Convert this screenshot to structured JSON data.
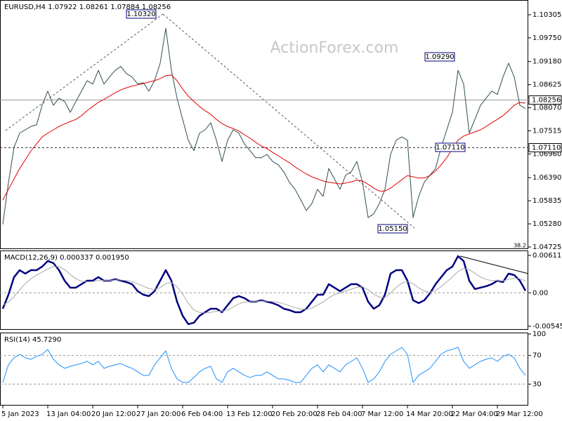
{
  "watermark": "ActionForex.com",
  "chart_data": [
    {
      "type": "line",
      "title": "EURUSD,H4 1.07922 1.08261 1.07884 1.08256",
      "ylim": [
        1.04674,
        1.10659
      ],
      "yticks": [
        1.10305,
        {
          "value": 1.0975,
          "label": "1.09750"
        },
        {
          "value": 1.0918,
          "label": "1.09180"
        },
        1.08625,
        {
          "value": 1.0807,
          "label": "1.08070"
        },
        1.07515,
        {
          "value": 1.0696,
          "label": "1.06960"
        },
        {
          "value": 1.0639,
          "label": "1.06390"
        },
        1.05835,
        {
          "value": 1.0528,
          "label": "1.05280"
        },
        1.04725
      ],
      "levels": [
        {
          "value": 1.08256,
          "label": "1.08256",
          "style": "solid"
        },
        {
          "value": 1.0711,
          "label": "1.07110",
          "style": "dashed"
        }
      ],
      "annotations": [
        "1.10320",
        "1.09290",
        "1.07110",
        "1.05150",
        "38.2"
      ],
      "series": [
        {
          "color": "#2f4f4f",
          "values": [
            1.0527,
            1.0627,
            1.0712,
            1.0746,
            1.0754,
            1.0762,
            1.0766,
            1.0813,
            1.0847,
            1.0813,
            1.083,
            1.0822,
            1.0796,
            1.0822,
            1.0847,
            1.0872,
            1.0864,
            1.0897,
            1.0864,
            1.0881,
            1.0897,
            1.0906,
            1.0889,
            1.0881,
            1.0864,
            1.0867,
            1.0847,
            1.0872,
            1.0914,
            1.0998,
            1.0897,
            1.083,
            1.0779,
            1.0729,
            1.0704,
            1.0746,
            1.0754,
            1.0771,
            1.0729,
            1.0678,
            1.0729,
            1.0754,
            1.0746,
            1.072,
            1.0704,
            1.0687,
            1.0687,
            1.0695,
            1.0678,
            1.067,
            1.0653,
            1.0628,
            1.0611,
            1.0586,
            1.056,
            1.0577,
            1.0611,
            1.0594,
            1.0661,
            1.0636,
            1.0611,
            1.0645,
            1.0653,
            1.0678,
            1.0628,
            1.0543,
            1.0552,
            1.0577,
            1.0611,
            1.0695,
            1.0729,
            1.0737,
            1.0729,
            1.0543,
            1.0594,
            1.0628,
            1.0645,
            1.0661,
            1.0712,
            1.0754,
            1.0796,
            1.0897,
            1.0864,
            1.0746,
            1.0779,
            1.0813,
            1.083,
            1.0847,
            1.0839,
            1.0881,
            1.0914,
            1.0881,
            1.0813,
            1.0805
          ]
        },
        {
          "color": "#e00000",
          "values": [
            1.0585,
            1.0611,
            1.0636,
            1.0661,
            1.0682,
            1.0703,
            1.072,
            1.0737,
            1.0746,
            1.0754,
            1.0762,
            1.0768,
            1.0774,
            1.0779,
            1.0788,
            1.08,
            1.081,
            1.082,
            1.0827,
            1.0835,
            1.0843,
            1.085,
            1.0855,
            1.0859,
            1.0862,
            1.0865,
            1.0869,
            1.0872,
            1.0877,
            1.0884,
            1.0886,
            1.0872,
            1.0852,
            1.0835,
            1.0822,
            1.081,
            1.08,
            1.0791,
            1.0779,
            1.0769,
            1.0762,
            1.0757,
            1.0751,
            1.0742,
            1.0734,
            1.0724,
            1.0715,
            1.0709,
            1.07,
            1.0692,
            1.0683,
            1.0675,
            1.0665,
            1.0656,
            1.0648,
            1.0641,
            1.0636,
            1.0631,
            1.0628,
            1.0626,
            1.0624,
            1.0626,
            1.0629,
            1.0633,
            1.0631,
            1.0623,
            1.0614,
            1.0607,
            1.0607,
            1.0614,
            1.0624,
            1.0634,
            1.0644,
            1.0641,
            1.0638,
            1.0638,
            1.0644,
            1.0655,
            1.067,
            1.0687,
            1.0709,
            1.0729,
            1.0739,
            1.0744,
            1.0749,
            1.0754,
            1.0762,
            1.0771,
            1.0779,
            1.0788,
            1.08,
            1.0813,
            1.082,
            1.0818
          ]
        }
      ]
    },
    {
      "type": "line",
      "title": "MACD(12,26,9) 0.000337 0.001950",
      "ylim": [
        -0.006031,
        0.00692
      ],
      "yticks": [
        0.006118,
        {
          "value": 0,
          "label": "0.00"
        },
        -0.005458
      ],
      "levels": [
        0
      ],
      "series": [
        {
          "color": "#000080",
          "width": 2.5,
          "values": [
            -0.00259,
            -0.0003,
            0.00257,
            0.00371,
            0.00314,
            0.00371,
            0.00371,
            0.00429,
            0.0052,
            0.00486,
            0.00371,
            0.00199,
            0.00085,
            0.00085,
            0.00142,
            0.00199,
            0.00199,
            0.00257,
            0.00199,
            0.00199,
            0.00222,
            0.00199,
            0.00176,
            0.00142,
            0.00028,
            -0.0003,
            -0.00053,
            0.00028,
            0.00199,
            0.00371,
            0.00199,
            -0.00144,
            -0.00374,
            -0.00511,
            -0.00488,
            -0.00374,
            -0.00316,
            -0.00259,
            -0.00259,
            -0.00316,
            -0.00202,
            -0.00087,
            -0.00053,
            -0.00087,
            -0.00144,
            -0.00144,
            -0.00121,
            -0.00144,
            -0.00167,
            -0.00202,
            -0.00259,
            -0.00282,
            -0.00316,
            -0.00316,
            -0.00259,
            -0.00144,
            -0.0003,
            -0.0003,
            0.00142,
            0.00085,
            0.00028,
            0.00085,
            0.00142,
            0.00142,
            0.00085,
            -0.00144,
            -0.00259,
            -0.00202,
            -0.0003,
            0.00314,
            0.00371,
            0.00371,
            0.00199,
            -0.00121,
            -0.00167,
            -0.00121,
            -7e-05,
            0.00142,
            0.00257,
            0.00371,
            0.00429,
            0.006,
            0.0052,
            0.00199,
            0.00062,
            0.00085,
            0.00108,
            0.00142,
            0.00199,
            0.00176,
            0.00314,
            0.00291,
            0.00199,
            0.00034
          ]
        },
        {
          "color": "#a9a9a9",
          "width": 1,
          "values": [
            -0.002,
            -0.0015,
            -0.0006,
            0.0005,
            0.0015,
            0.0023,
            0.0029,
            0.0034,
            0.0039,
            0.0043,
            0.0043,
            0.0038,
            0.003,
            0.0023,
            0.0019,
            0.0018,
            0.00185,
            0.002,
            0.00205,
            0.00205,
            0.0021,
            0.0021,
            0.002,
            0.00185,
            0.0015,
            0.0011,
            0.0007,
            0.00055,
            0.00085,
            0.0015,
            0.0017,
            0.001,
            -0.0002,
            -0.0017,
            -0.0028,
            -0.0032,
            -0.0033,
            -0.0032,
            -0.003,
            -0.003,
            -0.0028,
            -0.0023,
            -0.0018,
            -0.0015,
            -0.00145,
            -0.0014,
            -0.00135,
            -0.00135,
            -0.0014,
            -0.00155,
            -0.0018,
            -0.0021,
            -0.0024,
            -0.00265,
            -0.0027,
            -0.0025,
            -0.002,
            -0.0015,
            -0.0008,
            -0.0003,
            0,
            0.0003,
            0.0006,
            0.0009,
            0.001,
            0.0005,
            -0.0002,
            -0.0007,
            -0.0008,
            0,
            0.0009,
            0.0016,
            0.0019,
            0.0015,
            0.0008,
            0.0003,
            0.0001,
            0.0004,
            0.001,
            0.0018,
            0.0026,
            0.0035,
            0.004,
            0.0038,
            0.0032,
            0.0026,
            0.0022,
            0.002,
            0.002,
            0.00195,
            0.0022,
            0.0024,
            0.0023,
            0.00195
          ]
        }
      ]
    },
    {
      "type": "line",
      "title": "RSI(14) 45.7290",
      "ylim": [
        0,
        102
      ],
      "yticks": [
        100,
        70,
        30
      ],
      "levels": [
        70,
        30
      ],
      "categories": [
        "5 Jan 2023",
        null,
        null,
        null,
        null,
        null,
        null,
        null,
        "13 Jan 04:00",
        null,
        null,
        null,
        null,
        null,
        null,
        null,
        "20 Jan 12:00",
        null,
        null,
        null,
        null,
        null,
        null,
        null,
        "27 Jan 20:00",
        null,
        null,
        null,
        null,
        null,
        null,
        null,
        "6 Feb 04:00",
        null,
        null,
        null,
        null,
        null,
        null,
        null,
        "13 Feb 12:00",
        null,
        null,
        null,
        null,
        null,
        null,
        null,
        "20 Feb 20:00",
        null,
        null,
        null,
        null,
        null,
        null,
        null,
        "28 Feb 04:00",
        null,
        null,
        null,
        null,
        null,
        null,
        null,
        "7 Mar 12:00",
        null,
        null,
        null,
        null,
        null,
        null,
        null,
        "14 Mar 20:00",
        null,
        null,
        null,
        null,
        null,
        null,
        null,
        "22 Mar 04:00",
        null,
        null,
        null,
        null,
        null,
        null,
        null,
        "29 Mar 12:00",
        null,
        null,
        null,
        null,
        null
      ],
      "series": [
        {
          "color": "#1e90ff",
          "width": 1,
          "values": [
            32.4,
            56.9,
            66.7,
            71.6,
            66.7,
            64.7,
            68.7,
            71.6,
            78.5,
            64.7,
            56.9,
            52.0,
            54.9,
            56.9,
            58.9,
            61.8,
            56.9,
            61.8,
            52.0,
            54.9,
            56.9,
            58.9,
            54.9,
            52.0,
            47.1,
            42.2,
            42.2,
            56.9,
            66.7,
            76.5,
            52.0,
            37.3,
            32.4,
            32.4,
            39.2,
            47.1,
            52.0,
            54.9,
            37.3,
            32.4,
            47.1,
            52.0,
            47.1,
            42.2,
            39.2,
            42.2,
            42.2,
            47.1,
            42.2,
            37.3,
            37.3,
            35.3,
            32.4,
            32.4,
            42.2,
            52.0,
            56.9,
            47.1,
            56.9,
            52.0,
            47.1,
            56.9,
            61.8,
            66.7,
            52.0,
            32.4,
            37.3,
            47.1,
            61.8,
            71.6,
            76.5,
            81.4,
            71.6,
            32.4,
            42.2,
            47.1,
            52.0,
            61.8,
            71.6,
            76.5,
            78.5,
            81.4,
            61.8,
            52.0,
            56.9,
            61.8,
            64.7,
            66.7,
            61.8,
            68.7,
            71.6,
            66.7,
            52.0,
            42.2
          ]
        }
      ]
    }
  ]
}
